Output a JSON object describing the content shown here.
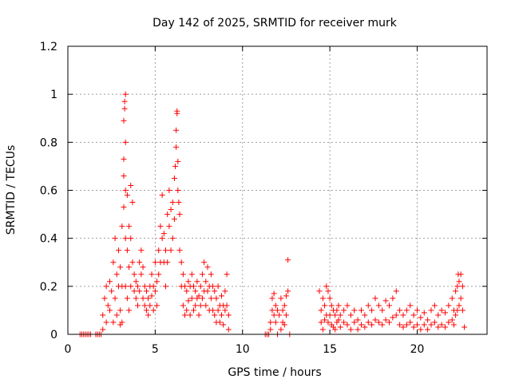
{
  "chart_data": {
    "type": "scatter",
    "title": "Day 142 of 2025, SRMTID for receiver murk",
    "xlabel": "GPS time / hours",
    "ylabel": "SRMTID / TECUs",
    "xlim": [
      0,
      24
    ],
    "ylim": [
      0,
      1.2
    ],
    "xticks": [
      0,
      5,
      10,
      15,
      20
    ],
    "yticks": [
      0,
      0.2,
      0.4,
      0.6,
      0.8,
      1,
      1.2
    ],
    "xtick_labels": [
      "0",
      "5",
      "10",
      "15",
      "20"
    ],
    "ytick_labels": [
      "0",
      "0.2",
      "0.4",
      "0.6",
      "0.8",
      "1",
      "1.2"
    ],
    "grid": true,
    "marker": "+",
    "marker_color": "#ff0000",
    "series": [
      {
        "name": "SRMTID",
        "points": [
          [
            0.7,
            0
          ],
          [
            0.8,
            0
          ],
          [
            0.9,
            0
          ],
          [
            1.0,
            0
          ],
          [
            1.1,
            0
          ],
          [
            1.2,
            0
          ],
          [
            1.3,
            0
          ],
          [
            1.6,
            0
          ],
          [
            1.7,
            0
          ],
          [
            1.8,
            0
          ],
          [
            1.9,
            0
          ],
          [
            2.0,
            0.02
          ],
          [
            2.0,
            0.08
          ],
          [
            2.1,
            0.15
          ],
          [
            2.2,
            0.05
          ],
          [
            2.2,
            0.2
          ],
          [
            2.3,
            0.12
          ],
          [
            2.4,
            0.1
          ],
          [
            2.4,
            0.22
          ],
          [
            2.5,
            0.18
          ],
          [
            2.6,
            0.3
          ],
          [
            2.6,
            0.05
          ],
          [
            2.7,
            0.4
          ],
          [
            2.7,
            0.15
          ],
          [
            2.8,
            0.25
          ],
          [
            2.8,
            0.08
          ],
          [
            2.9,
            0.35
          ],
          [
            2.9,
            0.2
          ],
          [
            3.0,
            0.1
          ],
          [
            3.0,
            0.28
          ],
          [
            3.0,
            0.04
          ],
          [
            3.1,
            0.45
          ],
          [
            3.1,
            0.2
          ],
          [
            3.1,
            0.05
          ],
          [
            3.2,
            0.53
          ],
          [
            3.2,
            0.66
          ],
          [
            3.2,
            0.73
          ],
          [
            3.2,
            0.89
          ],
          [
            3.25,
            0.94
          ],
          [
            3.25,
            0.97
          ],
          [
            3.3,
            1.0
          ],
          [
            3.3,
            0.8
          ],
          [
            3.3,
            0.6
          ],
          [
            3.3,
            0.4
          ],
          [
            3.3,
            0.2
          ],
          [
            3.4,
            0.58
          ],
          [
            3.4,
            0.35
          ],
          [
            3.4,
            0.15
          ],
          [
            3.5,
            0.45
          ],
          [
            3.5,
            0.28
          ],
          [
            3.5,
            0.1
          ],
          [
            3.6,
            0.62
          ],
          [
            3.6,
            0.4
          ],
          [
            3.6,
            0.2
          ],
          [
            3.7,
            0.55
          ],
          [
            3.7,
            0.3
          ],
          [
            3.8,
            0.25
          ],
          [
            3.8,
            0.18
          ],
          [
            3.9,
            0.22
          ],
          [
            3.9,
            0.15
          ],
          [
            4.0,
            0.2
          ],
          [
            4.0,
            0.12
          ],
          [
            4.1,
            0.3
          ],
          [
            4.1,
            0.18
          ],
          [
            4.2,
            0.35
          ],
          [
            4.2,
            0.25
          ],
          [
            4.3,
            0.28
          ],
          [
            4.3,
            0.15
          ],
          [
            4.4,
            0.12
          ],
          [
            4.4,
            0.2
          ],
          [
            4.5,
            0.18
          ],
          [
            4.5,
            0.1
          ],
          [
            4.6,
            0.15
          ],
          [
            4.6,
            0.08
          ],
          [
            4.7,
            0.2
          ],
          [
            4.7,
            0.12
          ],
          [
            4.8,
            0.16
          ],
          [
            4.8,
            0.25
          ],
          [
            4.9,
            0.1
          ],
          [
            4.9,
            0.2
          ],
          [
            5.0,
            0.18
          ],
          [
            5.0,
            0.3
          ],
          [
            5.1,
            0.22
          ],
          [
            5.1,
            0.12
          ],
          [
            5.2,
            0.35
          ],
          [
            5.2,
            0.25
          ],
          [
            5.3,
            0.3
          ],
          [
            5.3,
            0.45
          ],
          [
            5.4,
            0.58
          ],
          [
            5.4,
            0.4
          ],
          [
            5.5,
            0.42
          ],
          [
            5.5,
            0.3
          ],
          [
            5.6,
            0.35
          ],
          [
            5.6,
            0.2
          ],
          [
            5.7,
            0.5
          ],
          [
            5.7,
            0.3
          ],
          [
            5.8,
            0.6
          ],
          [
            5.8,
            0.45
          ],
          [
            5.9,
            0.52
          ],
          [
            5.9,
            0.35
          ],
          [
            6.0,
            0.55
          ],
          [
            6.0,
            0.4
          ],
          [
            6.1,
            0.65
          ],
          [
            6.1,
            0.48
          ],
          [
            6.15,
            0.7
          ],
          [
            6.2,
            0.78
          ],
          [
            6.2,
            0.85
          ],
          [
            6.25,
            0.93
          ],
          [
            6.25,
            0.92
          ],
          [
            6.3,
            0.72
          ],
          [
            6.3,
            0.6
          ],
          [
            6.35,
            0.55
          ],
          [
            6.4,
            0.5
          ],
          [
            6.4,
            0.35
          ],
          [
            6.5,
            0.3
          ],
          [
            6.5,
            0.2
          ],
          [
            6.6,
            0.25
          ],
          [
            6.6,
            0.12
          ],
          [
            6.7,
            0.2
          ],
          [
            6.7,
            0.08
          ],
          [
            6.8,
            0.18
          ],
          [
            6.8,
            0.1
          ],
          [
            6.9,
            0.22
          ],
          [
            6.9,
            0.14
          ],
          [
            7.0,
            0.2
          ],
          [
            7.0,
            0.08
          ],
          [
            7.1,
            0.25
          ],
          [
            7.1,
            0.15
          ],
          [
            7.2,
            0.2
          ],
          [
            7.2,
            0.1
          ],
          [
            7.3,
            0.18
          ],
          [
            7.3,
            0.12
          ],
          [
            7.4,
            0.22
          ],
          [
            7.4,
            0.15
          ],
          [
            7.5,
            0.16
          ],
          [
            7.5,
            0.08
          ],
          [
            7.6,
            0.2
          ],
          [
            7.6,
            0.12
          ],
          [
            7.7,
            0.25
          ],
          [
            7.7,
            0.15
          ],
          [
            7.8,
            0.3
          ],
          [
            7.8,
            0.18
          ],
          [
            7.9,
            0.22
          ],
          [
            7.9,
            0.12
          ],
          [
            8.0,
            0.28
          ],
          [
            8.0,
            0.18
          ],
          [
            8.1,
            0.2
          ],
          [
            8.1,
            0.1
          ],
          [
            8.2,
            0.25
          ],
          [
            8.2,
            0.15
          ],
          [
            8.3,
            0.2
          ],
          [
            8.3,
            0.1
          ],
          [
            8.4,
            0.18
          ],
          [
            8.4,
            0.08
          ],
          [
            8.5,
            0.15
          ],
          [
            8.5,
            0.05
          ],
          [
            8.6,
            0.2
          ],
          [
            8.6,
            0.1
          ],
          [
            8.7,
            0.12
          ],
          [
            8.7,
            0.05
          ],
          [
            8.8,
            0.16
          ],
          [
            8.8,
            0.08
          ],
          [
            8.9,
            0.12
          ],
          [
            8.9,
            0.04
          ],
          [
            9.0,
            0.18
          ],
          [
            9.0,
            0.1
          ],
          [
            9.1,
            0.25
          ],
          [
            9.1,
            0.12
          ],
          [
            9.2,
            0.08
          ],
          [
            9.2,
            0.02
          ],
          [
            11.3,
            0
          ],
          [
            11.4,
            0
          ],
          [
            11.5,
            0
          ],
          [
            11.6,
            0.05
          ],
          [
            11.6,
            0.02
          ],
          [
            11.7,
            0.1
          ],
          [
            11.7,
            0.15
          ],
          [
            11.8,
            0.08
          ],
          [
            11.8,
            0.17
          ],
          [
            11.9,
            0.05
          ],
          [
            11.9,
            0.12
          ],
          [
            12.0,
            0.1
          ],
          [
            12.0,
            0
          ],
          [
            12.1,
            0.08
          ],
          [
            12.2,
            0.15
          ],
          [
            12.2,
            0.02
          ],
          [
            12.3,
            0.1
          ],
          [
            12.3,
            0.05
          ],
          [
            12.4,
            0.12
          ],
          [
            12.4,
            0.04
          ],
          [
            12.5,
            0.16
          ],
          [
            12.5,
            0.08
          ],
          [
            12.6,
            0.18
          ],
          [
            12.6,
            0.31
          ],
          [
            12.7,
            0
          ],
          [
            14.4,
            0.18
          ],
          [
            14.5,
            0.1
          ],
          [
            14.5,
            0.05
          ],
          [
            14.6,
            0.15
          ],
          [
            14.6,
            0.02
          ],
          [
            14.7,
            0.12
          ],
          [
            14.7,
            0.06
          ],
          [
            14.8,
            0.2
          ],
          [
            14.8,
            0.08
          ],
          [
            14.9,
            0.18
          ],
          [
            14.9,
            0.05
          ],
          [
            15.0,
            0.15
          ],
          [
            15.0,
            0.08
          ],
          [
            15.1,
            0.12
          ],
          [
            15.1,
            0.04
          ],
          [
            15.2,
            0.1
          ],
          [
            15.2,
            0.03
          ],
          [
            15.3,
            0.08
          ],
          [
            15.3,
            0.02
          ],
          [
            15.4,
            0.1
          ],
          [
            15.4,
            0.05
          ],
          [
            15.5,
            0.12
          ],
          [
            15.5,
            0.06
          ],
          [
            15.6,
            0.08
          ],
          [
            15.6,
            0.03
          ],
          [
            15.8,
            0.1
          ],
          [
            15.8,
            0.05
          ],
          [
            16.0,
            0.12
          ],
          [
            16.0,
            0.04
          ],
          [
            16.2,
            0.08
          ],
          [
            16.2,
            0.02
          ],
          [
            16.4,
            0.1
          ],
          [
            16.4,
            0.05
          ],
          [
            16.6,
            0.06
          ],
          [
            16.6,
            0.02
          ],
          [
            16.8,
            0.1
          ],
          [
            16.8,
            0.04
          ],
          [
            17.0,
            0.08
          ],
          [
            17.0,
            0.03
          ],
          [
            17.2,
            0.12
          ],
          [
            17.2,
            0.05
          ],
          [
            17.4,
            0.1
          ],
          [
            17.4,
            0.04
          ],
          [
            17.6,
            0.15
          ],
          [
            17.6,
            0.06
          ],
          [
            17.8,
            0.12
          ],
          [
            17.8,
            0.05
          ],
          [
            18.0,
            0.1
          ],
          [
            18.0,
            0.04
          ],
          [
            18.2,
            0.14
          ],
          [
            18.2,
            0.06
          ],
          [
            18.4,
            0.12
          ],
          [
            18.4,
            0.05
          ],
          [
            18.6,
            0.15
          ],
          [
            18.6,
            0.07
          ],
          [
            18.8,
            0.18
          ],
          [
            18.8,
            0.08
          ],
          [
            19.0,
            0.1
          ],
          [
            19.0,
            0.04
          ],
          [
            19.2,
            0.08
          ],
          [
            19.2,
            0.03
          ],
          [
            19.4,
            0.1
          ],
          [
            19.4,
            0.04
          ],
          [
            19.6,
            0.12
          ],
          [
            19.6,
            0.05
          ],
          [
            19.8,
            0.08
          ],
          [
            19.8,
            0.03
          ],
          [
            20.0,
            0.1
          ],
          [
            20.0,
            0.04
          ],
          [
            20.2,
            0.07
          ],
          [
            20.2,
            0.02
          ],
          [
            20.4,
            0.09
          ],
          [
            20.4,
            0.04
          ],
          [
            20.6,
            0.06
          ],
          [
            20.6,
            0.02
          ],
          [
            20.8,
            0.1
          ],
          [
            20.8,
            0.04
          ],
          [
            21.0,
            0.12
          ],
          [
            21.0,
            0.05
          ],
          [
            21.2,
            0.08
          ],
          [
            21.2,
            0.03
          ],
          [
            21.4,
            0.1
          ],
          [
            21.4,
            0.04
          ],
          [
            21.6,
            0.09
          ],
          [
            21.6,
            0.03
          ],
          [
            21.8,
            0.12
          ],
          [
            21.8,
            0.05
          ],
          [
            22.0,
            0.15
          ],
          [
            22.0,
            0.06
          ],
          [
            22.1,
            0.1
          ],
          [
            22.1,
            0.04
          ],
          [
            22.2,
            0.18
          ],
          [
            22.2,
            0.08
          ],
          [
            22.3,
            0.2
          ],
          [
            22.3,
            0.1
          ],
          [
            22.35,
            0.25
          ],
          [
            22.4,
            0.22
          ],
          [
            22.4,
            0.12
          ],
          [
            22.5,
            0.25
          ],
          [
            22.5,
            0.15
          ],
          [
            22.6,
            0.2
          ],
          [
            22.6,
            0.1
          ],
          [
            22.7,
            0.03
          ]
        ]
      }
    ]
  }
}
